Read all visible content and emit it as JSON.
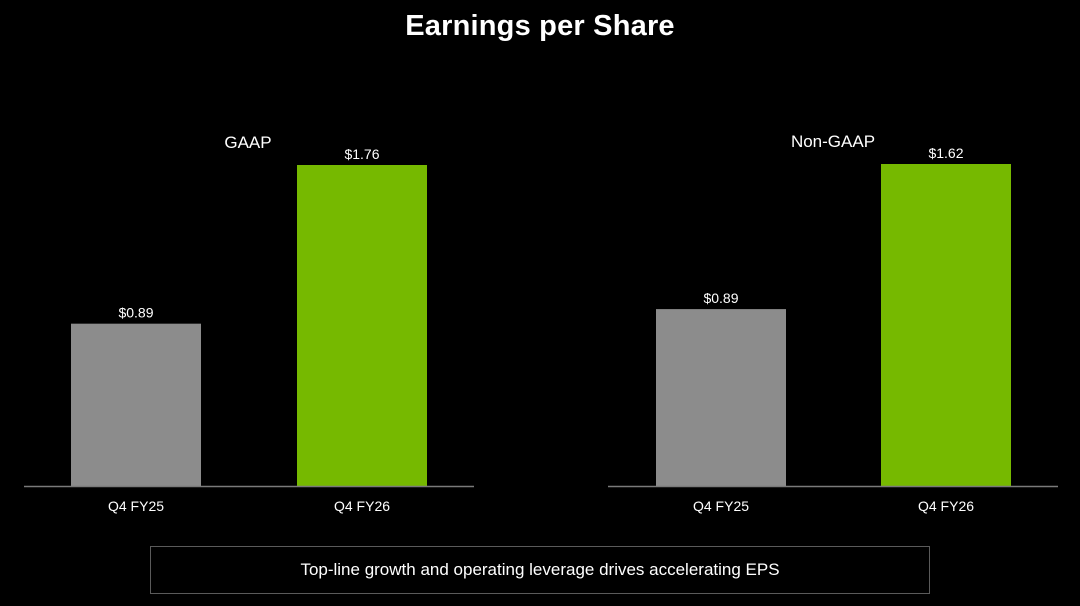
{
  "page": {
    "title": "Earnings per Share",
    "callout": "Top-line growth and operating leverage drives accelerating EPS"
  },
  "colors": {
    "background": "#000000",
    "prior_year_bar": "#8c8c8c",
    "current_year_bar": "#76b900",
    "axis_line": "#7a7a7a",
    "text": "#ffffff"
  },
  "chart_data": [
    {
      "type": "bar",
      "title": "GAAP",
      "categories": [
        "Q4 FY25",
        "Q4 FY26"
      ],
      "values": [
        0.89,
        1.76
      ],
      "value_labels": [
        "$0.89",
        "$1.76"
      ],
      "bar_colors": [
        "#8c8c8c",
        "#76b900"
      ],
      "xlabel": "",
      "ylabel": "",
      "ylim": [
        0,
        1.76
      ],
      "grid": false,
      "legend": "none"
    },
    {
      "type": "bar",
      "title": "Non-GAAP",
      "categories": [
        "Q4 FY25",
        "Q4 FY26"
      ],
      "values": [
        0.89,
        1.62
      ],
      "value_labels": [
        "$0.89",
        "$1.62"
      ],
      "bar_colors": [
        "#8c8c8c",
        "#76b900"
      ],
      "xlabel": "",
      "ylabel": "",
      "ylim": [
        0,
        1.62
      ],
      "grid": false,
      "legend": "none"
    }
  ]
}
